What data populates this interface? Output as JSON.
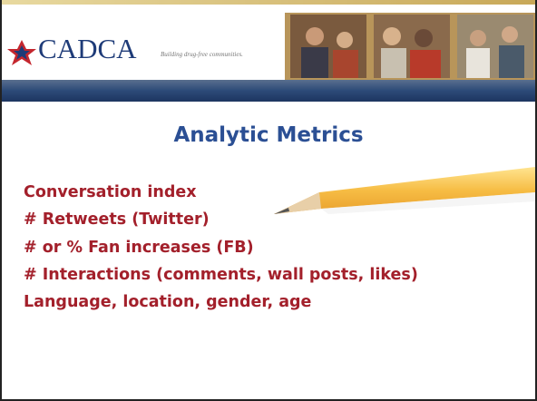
{
  "header": {
    "logo": "CADCA",
    "tagline": "Building drug-free communities."
  },
  "title": "Analytic Metrics",
  "items": [
    "Conversation index",
    "# Retweets (Twitter)",
    "# or % Fan increases (FB)",
    "# Interactions (comments, wall posts, likes)",
    "Language, location, gender, age"
  ]
}
